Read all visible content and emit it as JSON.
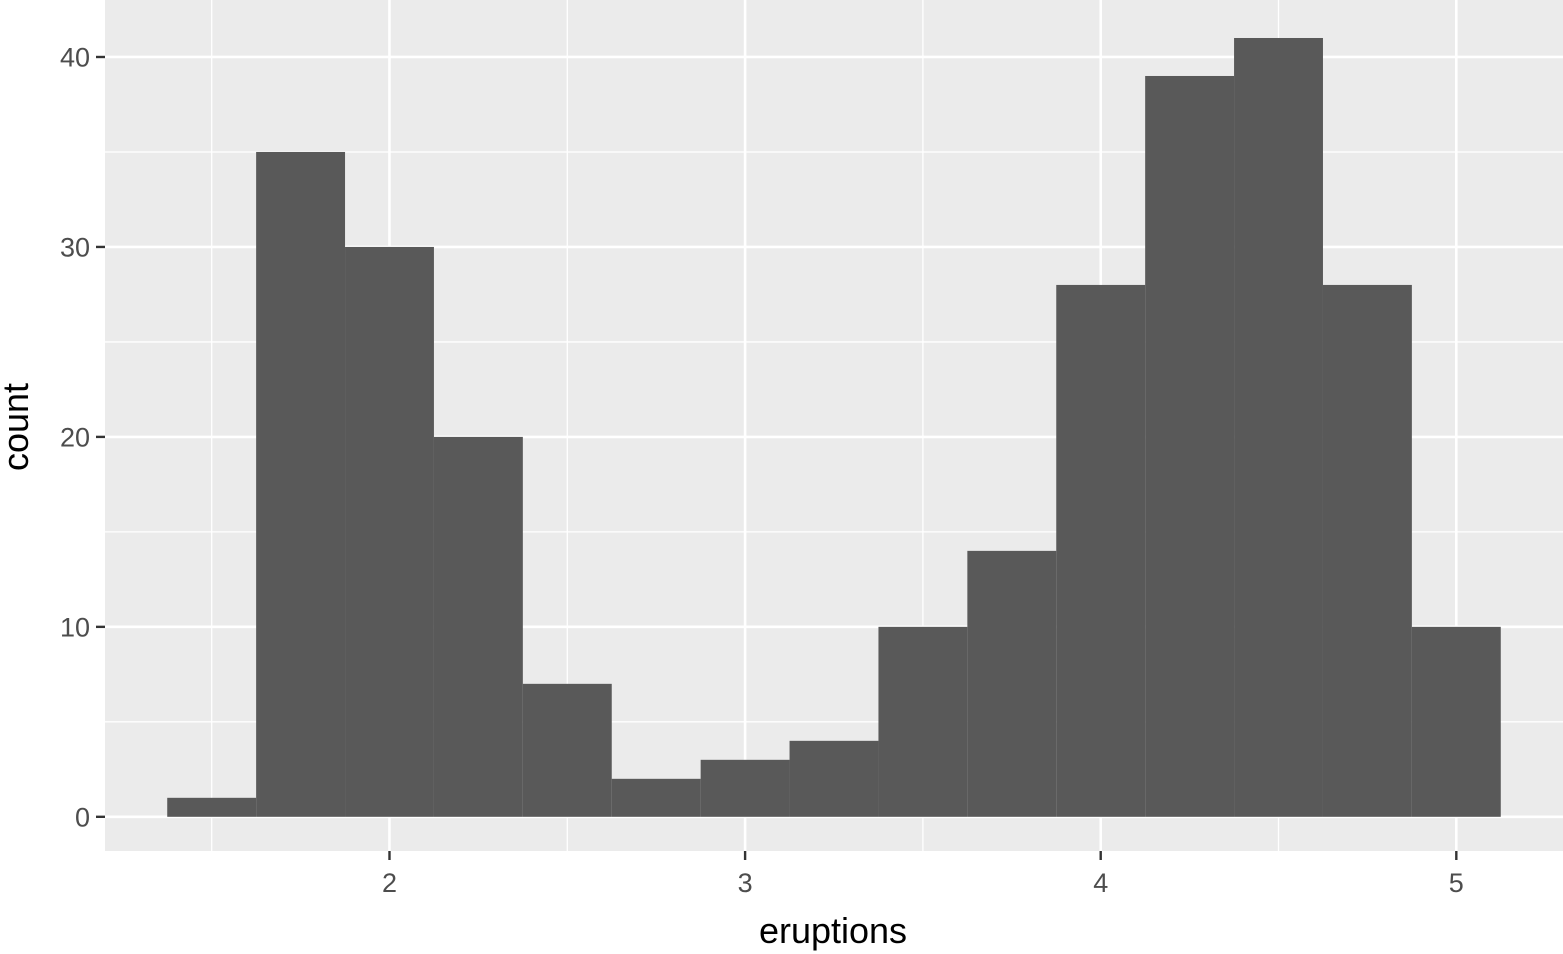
{
  "chart_data": {
    "type": "bar",
    "subtype": "histogram",
    "title": "",
    "xlabel": "eruptions",
    "ylabel": "count",
    "xlim": [
      1.2,
      5.3
    ],
    "ylim": [
      -1.8,
      43
    ],
    "x_ticks": [
      2,
      3,
      4,
      5
    ],
    "y_ticks": [
      0,
      10,
      20,
      30,
      40
    ],
    "x_tick_labels": [
      "2",
      "3",
      "4",
      "5"
    ],
    "y_tick_labels": [
      "0",
      "10",
      "20",
      "30",
      "40"
    ],
    "x_minor_gridlines": [
      1.5,
      2.5,
      3.5,
      4.5
    ],
    "y_minor_gridlines": [
      5,
      15,
      25,
      35
    ],
    "grid": true,
    "bins": [
      {
        "x0": 1.375,
        "x1": 1.625,
        "count": 1
      },
      {
        "x0": 1.625,
        "x1": 1.875,
        "count": 35
      },
      {
        "x0": 1.875,
        "x1": 2.125,
        "count": 30
      },
      {
        "x0": 2.125,
        "x1": 2.375,
        "count": 20
      },
      {
        "x0": 2.375,
        "x1": 2.625,
        "count": 7
      },
      {
        "x0": 2.625,
        "x1": 2.875,
        "count": 2
      },
      {
        "x0": 2.875,
        "x1": 3.125,
        "count": 3
      },
      {
        "x0": 3.125,
        "x1": 3.375,
        "count": 4
      },
      {
        "x0": 3.375,
        "x1": 3.625,
        "count": 10
      },
      {
        "x0": 3.625,
        "x1": 3.875,
        "count": 14
      },
      {
        "x0": 3.875,
        "x1": 4.125,
        "count": 28
      },
      {
        "x0": 4.125,
        "x1": 4.375,
        "count": 39
      },
      {
        "x0": 4.375,
        "x1": 4.625,
        "count": 41
      },
      {
        "x0": 4.625,
        "x1": 4.875,
        "count": 28
      },
      {
        "x0": 4.875,
        "x1": 5.125,
        "count": 10
      }
    ],
    "colors": {
      "panel_background": "#ebebeb",
      "bar_fill": "#595959",
      "gridline": "#ffffff",
      "tick_mark": "#333333"
    }
  }
}
